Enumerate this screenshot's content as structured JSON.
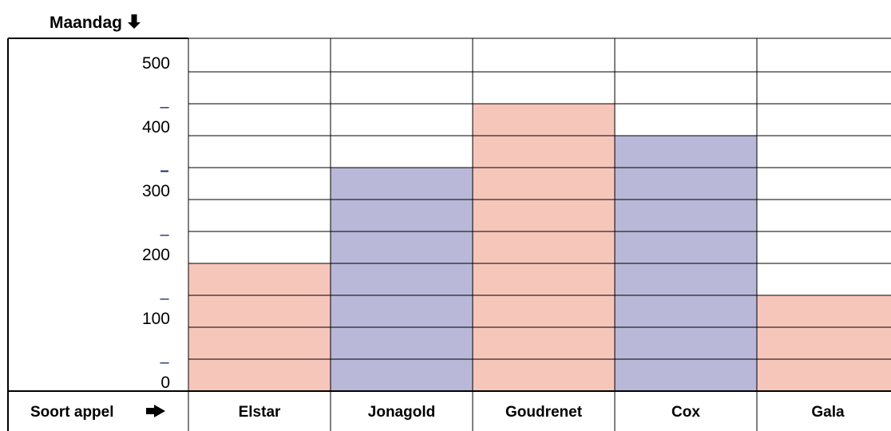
{
  "header": {
    "title": "Maandag",
    "title_arrow": "down-arrow-icon"
  },
  "chart_data": {
    "type": "bar",
    "title": "Maandag",
    "xlabel": "Soort appel",
    "ylabel": "",
    "categories": [
      "Elstar",
      "Jonagold",
      "Goudrenet",
      "Cox",
      "Gala"
    ],
    "values": [
      200,
      350,
      450,
      400,
      150
    ],
    "bar_colors": [
      "#f7c6bb",
      "#b9b8d9",
      "#f7c6bb",
      "#b9b8d9",
      "#f7c6bb"
    ],
    "ylim": [
      0,
      500
    ],
    "y_tick_labels": [
      "0",
      "100",
      "200",
      "300",
      "400",
      "500"
    ],
    "y_tick_step": 100,
    "y_minor_step": 50,
    "minor_tick_marks": [
      "–",
      "–",
      "–",
      "–",
      "–"
    ],
    "grid": true,
    "legend": "none",
    "colors": {
      "salmon": "#f7c6bb",
      "lavender": "#b9b8d9",
      "minor_tick": "#1f2d6e",
      "gridline": "#000000"
    },
    "x_axis_arrow": "right-arrow-icon"
  }
}
